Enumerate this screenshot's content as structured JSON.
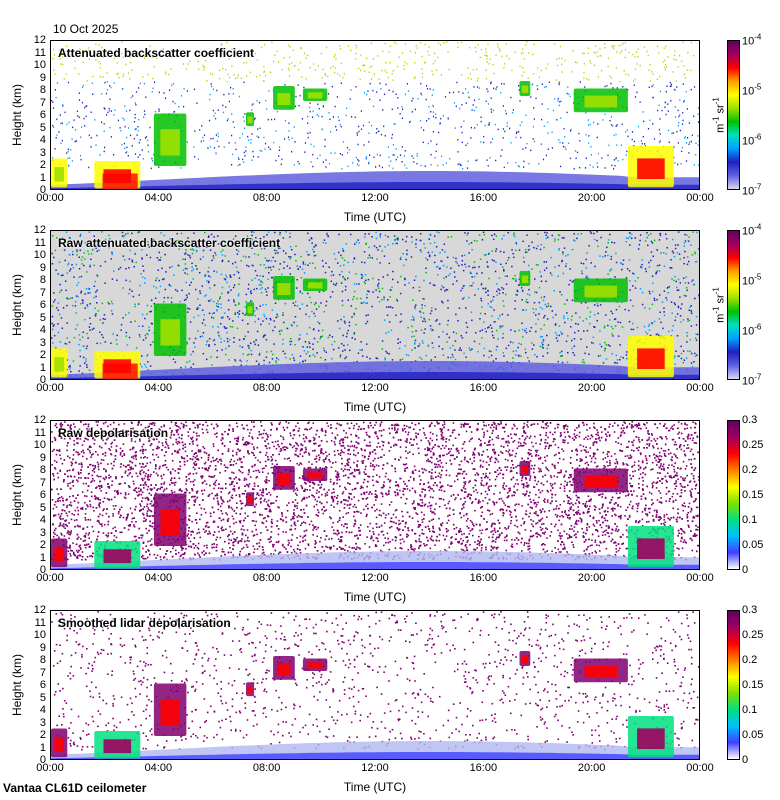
{
  "date_label": "10 Oct 2025",
  "footer_label": "Vantaa CL61D ceilometer",
  "colors": {
    "backscatter_scale": [
      "#d8d8f0",
      "#6060e0",
      "#2020c0",
      "#00a0ff",
      "#00e0c0",
      "#00c000",
      "#a0e000",
      "#ffff00",
      "#ffa000",
      "#ff0000",
      "#a00060",
      "#600060"
    ],
    "depol_scale": [
      "#ffffff",
      "#4040ff",
      "#00c0ff",
      "#00e080",
      "#80e000",
      "#ffff00",
      "#ff8000",
      "#ff0000",
      "#a00060",
      "#600060"
    ],
    "depol_noise": "#800070",
    "background_noise": "#d8d8d8"
  },
  "chart_data": [
    {
      "type": "heatmap",
      "title": "Attenuated backscatter coefficient",
      "xlabel": "Time (UTC)",
      "ylabel": "Height (km)",
      "x_ticks": [
        "00:00",
        "04:00",
        "08:00",
        "12:00",
        "16:00",
        "20:00",
        "00:00"
      ],
      "x_range_hours": [
        0,
        24
      ],
      "y_ticks": [
        "0",
        "1",
        "2",
        "3",
        "4",
        "5",
        "6",
        "7",
        "8",
        "9",
        "10",
        "11",
        "12"
      ],
      "ylim": [
        0,
        12
      ],
      "colorbar": {
        "scale": "log",
        "range": [
          1e-07,
          0.0001
        ],
        "ticks": [
          "10-7",
          "10-6",
          "10-5",
          "10-4"
        ],
        "unit": "m-1 sr-1"
      }
    },
    {
      "type": "heatmap",
      "title": "Raw attenuated backscatter coefficient",
      "xlabel": "Time (UTC)",
      "ylabel": "Height (km)",
      "x_ticks": [
        "00:00",
        "04:00",
        "08:00",
        "12:00",
        "16:00",
        "20:00",
        "00:00"
      ],
      "x_range_hours": [
        0,
        24
      ],
      "y_ticks": [
        "0",
        "1",
        "2",
        "3",
        "4",
        "5",
        "6",
        "7",
        "8",
        "9",
        "10",
        "11",
        "12"
      ],
      "ylim": [
        0,
        12
      ],
      "colorbar": {
        "scale": "log",
        "range": [
          1e-07,
          0.0001
        ],
        "ticks": [
          "10-7",
          "10-6",
          "10-5",
          "10-4"
        ],
        "unit": "m-1 sr-1"
      }
    },
    {
      "type": "heatmap",
      "title": "Raw depolarisation",
      "xlabel": "Time (UTC)",
      "ylabel": "Height (km)",
      "x_ticks": [
        "00:00",
        "04:00",
        "08:00",
        "12:00",
        "16:00",
        "20:00",
        "00:00"
      ],
      "x_range_hours": [
        0,
        24
      ],
      "y_ticks": [
        "0",
        "1",
        "2",
        "3",
        "4",
        "5",
        "6",
        "7",
        "8",
        "9",
        "10",
        "11",
        "12"
      ],
      "ylim": [
        0,
        12
      ],
      "colorbar": {
        "scale": "linear",
        "range": [
          0,
          0.3
        ],
        "ticks": [
          "0",
          "0.05",
          "0.1",
          "0.15",
          "0.2",
          "0.25",
          "0.3"
        ],
        "unit": ""
      }
    },
    {
      "type": "heatmap",
      "title": "Smoothed lidar depolarisation",
      "xlabel": "Time (UTC)",
      "ylabel": "Height (km)",
      "x_ticks": [
        "00:00",
        "04:00",
        "08:00",
        "12:00",
        "16:00",
        "20:00",
        "00:00"
      ],
      "x_range_hours": [
        0,
        24
      ],
      "y_ticks": [
        "0",
        "1",
        "2",
        "3",
        "4",
        "5",
        "6",
        "7",
        "8",
        "9",
        "10",
        "11",
        "12"
      ],
      "ylim": [
        0,
        12
      ],
      "colorbar": {
        "scale": "linear",
        "range": [
          0,
          0.3
        ],
        "ticks": [
          "0",
          "0.05",
          "0.1",
          "0.15",
          "0.2",
          "0.25",
          "0.3"
        ],
        "unit": ""
      }
    }
  ]
}
